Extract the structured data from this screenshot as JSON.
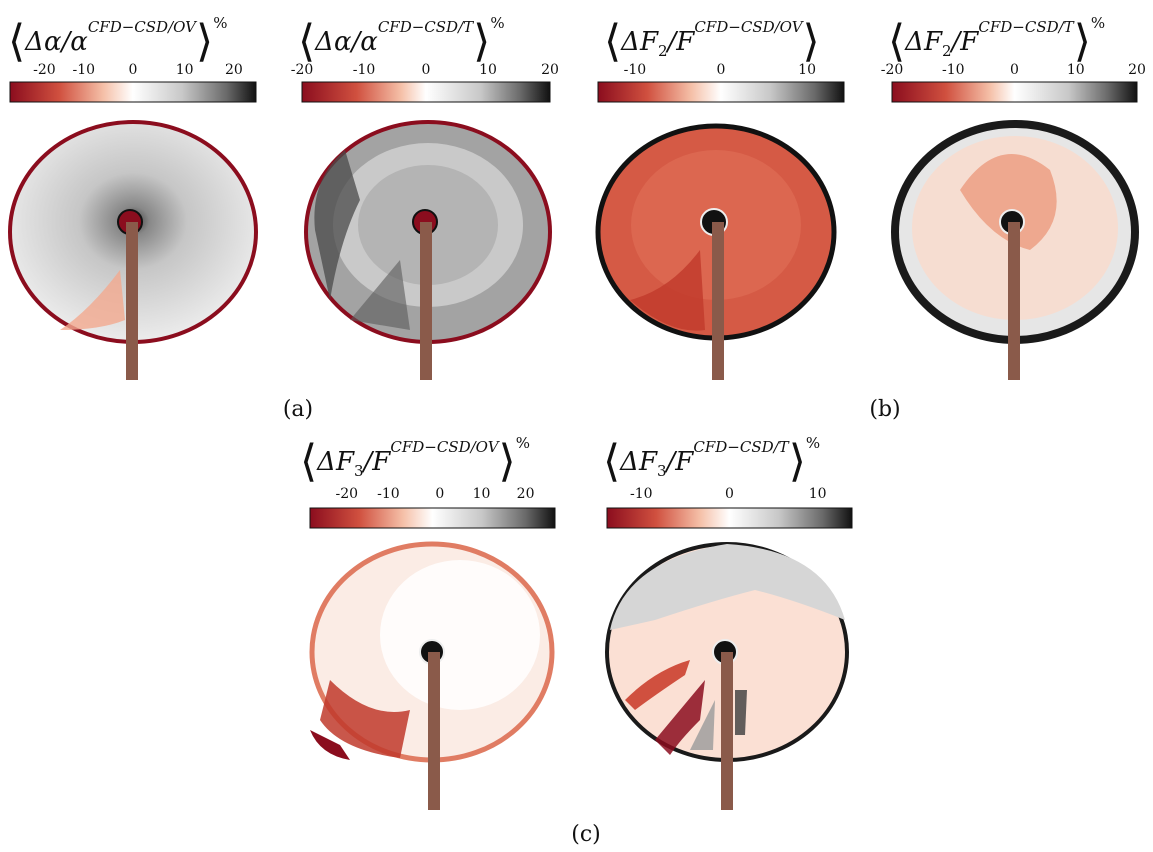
{
  "panels": [
    {
      "title_main": "Δα/α",
      "title_sup": "CFD−CSD/OV",
      "percent": "%",
      "ticks": [
        "-20",
        "-10",
        "0",
        "10",
        "20"
      ],
      "tick_values": [
        -20,
        -10,
        0,
        10,
        20
      ],
      "range": [
        -24,
        24
      ]
    },
    {
      "title_main": "Δα/α",
      "title_sup": "CFD−CSD/T",
      "percent": "%",
      "ticks": [
        "-20",
        "-10",
        "0",
        "10",
        "20"
      ],
      "tick_values": [
        -20,
        -10,
        0,
        10,
        20
      ],
      "range": [
        -20,
        20
      ]
    },
    {
      "title_main": "ΔF",
      "title_sub": "2",
      "title_mid": "/F",
      "title_sup": "CFD−CSD/OV",
      "percent": "%",
      "ticks": [
        "-10",
        "0",
        "10"
      ],
      "tick_values": [
        -10,
        0,
        10
      ],
      "range": [
        -14,
        14
      ]
    },
    {
      "title_main": "ΔF",
      "title_sub": "2",
      "title_mid": "/F",
      "title_sup": "CFD−CSD/T",
      "percent": "%",
      "ticks": [
        "-20",
        "-10",
        "0",
        "10",
        "20"
      ],
      "tick_values": [
        -20,
        -10,
        0,
        10,
        20
      ],
      "range": [
        -20,
        20
      ]
    },
    {
      "title_main": "ΔF",
      "title_sub": "3",
      "title_mid": "/F",
      "title_sup": "CFD−CSD/OV",
      "percent": "%",
      "ticks": [
        "-20",
        "-10",
        "0",
        "10",
        "20"
      ],
      "tick_values": [
        -20,
        -10,
        0,
        10,
        20
      ],
      "range": [
        -24,
        24
      ]
    },
    {
      "title_main": "ΔF",
      "title_sub": "3",
      "title_mid": "/F",
      "title_sup": "CFD−CSD/T",
      "percent": "%",
      "ticks": [
        "-10",
        "0",
        "10"
      ],
      "tick_values": [
        -10,
        0,
        10
      ],
      "range": [
        -14,
        14
      ]
    }
  ],
  "captions": {
    "a": "(a)",
    "b": "(b)",
    "c": "(c)"
  },
  "colors": {
    "dark_red": "#8b0d1e",
    "red": "#d0503f",
    "salmon": "#f2a98e",
    "pale": "#fbe4d9",
    "white": "#ffffff",
    "light_gray": "#d6d6d6",
    "gray": "#9a9a9a",
    "dark_gray": "#3c3c3c",
    "black": "#111111",
    "tower": "#8a5a4a"
  }
}
